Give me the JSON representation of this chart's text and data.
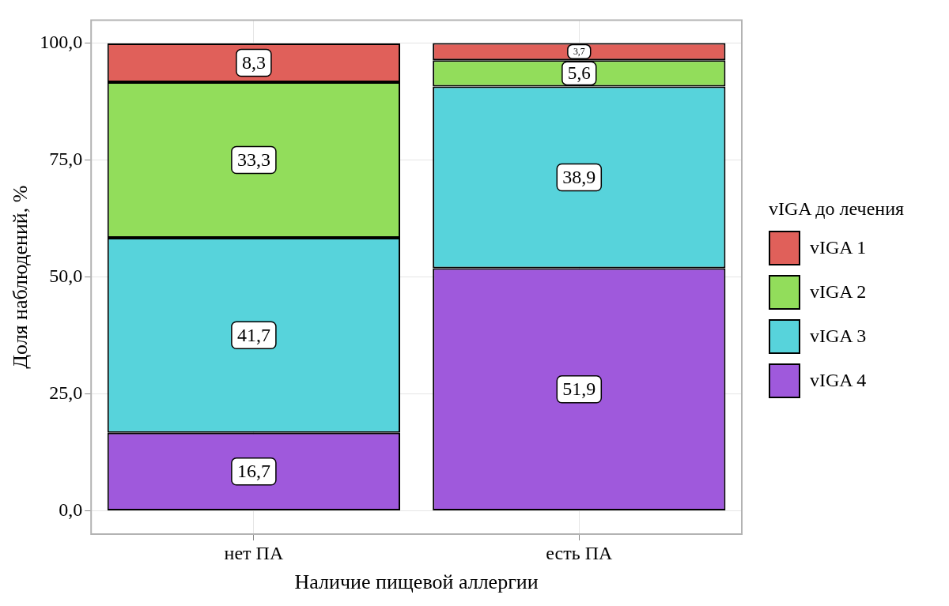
{
  "chart_data": {
    "type": "bar",
    "stacked": true,
    "xlabel": "Наличие пищевой аллергии",
    "ylabel": "Доля наблюдений, %",
    "legend_title": "vIGA до лечения",
    "legend": "right",
    "grid": true,
    "categories": [
      "нет ПА",
      "есть ПА"
    ],
    "ylim": [
      -5,
      105
    ],
    "yticks": [
      {
        "value": 0,
        "label": "0,0"
      },
      {
        "value": 25,
        "label": "25,0"
      },
      {
        "value": 50,
        "label": "50,0"
      },
      {
        "value": 75,
        "label": "75,0"
      },
      {
        "value": 100,
        "label": "100,0"
      }
    ],
    "series": [
      {
        "name": "vIGA 4",
        "color": "#9f59dc",
        "values": [
          16.7,
          51.9
        ],
        "value_labels": [
          "16,7",
          "51,9"
        ]
      },
      {
        "name": "vIGA 3",
        "color": "#57d3db",
        "values": [
          41.7,
          38.9
        ],
        "value_labels": [
          "41,7",
          "38,9"
        ]
      },
      {
        "name": "vIGA 2",
        "color": "#92dd5b",
        "values": [
          33.3,
          5.6
        ],
        "value_labels": [
          "33,3",
          "5,6"
        ]
      },
      {
        "name": "vIGA 1",
        "color": "#e0605a",
        "values": [
          8.3,
          3.7
        ],
        "value_labels": [
          "8,3",
          "3,7"
        ]
      }
    ]
  }
}
